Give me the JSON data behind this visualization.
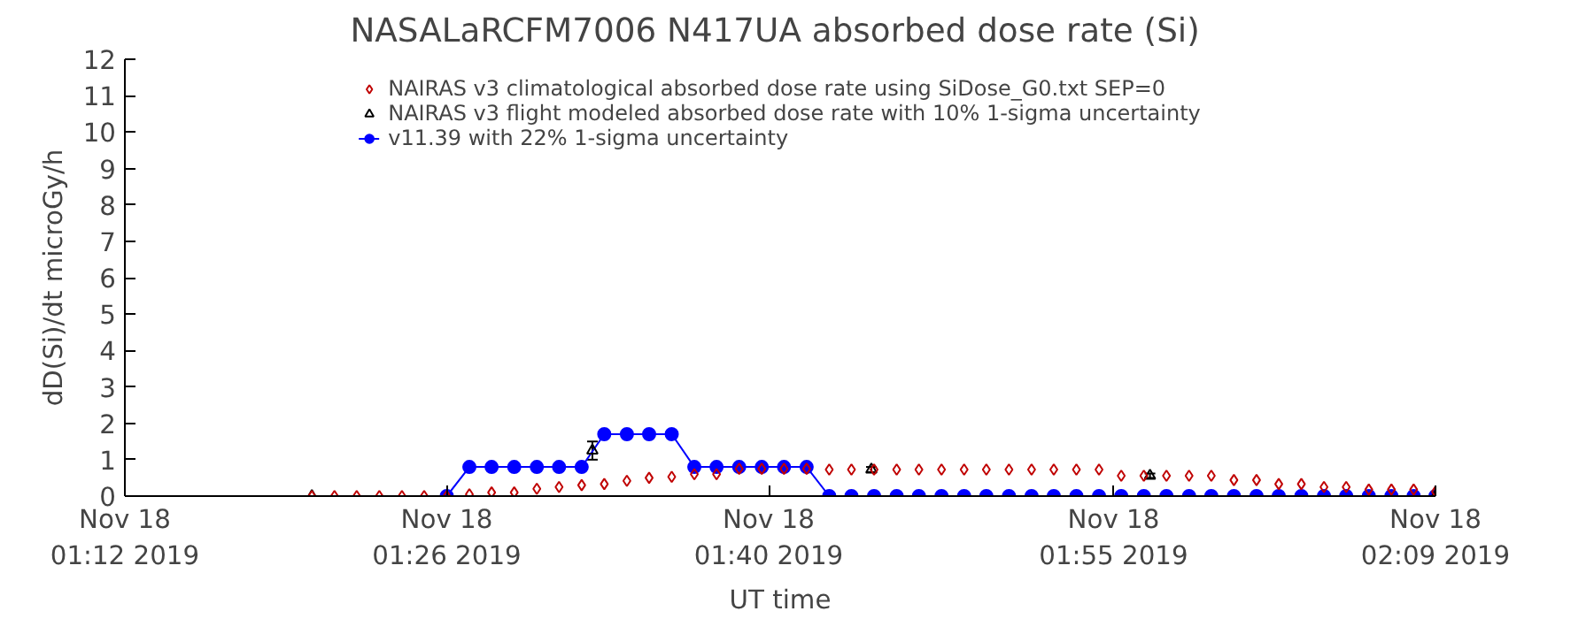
{
  "chart_data": {
    "type": "scatter",
    "title": "NASALaRCFM7006  N417UA absorbed dose rate (Si)",
    "xlabel": "UT time",
    "ylabel": "dD(Si)/dt microGy/h",
    "xlim": [
      "2019-11-18T01:12",
      "2019-11-18T02:09"
    ],
    "ylim": [
      0,
      12
    ],
    "xticks": [
      {
        "value": "2019-11-18T01:12",
        "label": "Nov 18\n01:12 2019"
      },
      {
        "value": "2019-11-18T01:26",
        "label": "Nov 18\n01:26 2019"
      },
      {
        "value": "2019-11-18T01:40",
        "label": "Nov 18\n01:40 2019"
      },
      {
        "value": "2019-11-18T01:55",
        "label": "Nov 18\n01:55 2019"
      },
      {
        "value": "2019-11-18T02:09",
        "label": "Nov 18\n02:09 2019"
      }
    ],
    "yticks": [
      0,
      1,
      2,
      3,
      4,
      5,
      6,
      7,
      8,
      9,
      10,
      11,
      12
    ],
    "grid": false,
    "legend": "top",
    "x": [
      "2019-11-18T01:20:08",
      "2019-11-18T01:21:07",
      "2019-11-18T01:22:05",
      "2019-11-18T01:23:04",
      "2019-11-18T01:24:03",
      "2019-11-18T01:25:01",
      "2019-11-18T01:26:00",
      "2019-11-18T01:26:59",
      "2019-11-18T01:27:57",
      "2019-11-18T01:28:56",
      "2019-11-18T01:29:55",
      "2019-11-18T01:30:53",
      "2019-11-18T01:31:52",
      "2019-11-18T01:32:51",
      "2019-11-18T01:33:50",
      "2019-11-18T01:34:48",
      "2019-11-18T01:35:47",
      "2019-11-18T01:36:46",
      "2019-11-18T01:37:44",
      "2019-11-18T01:38:43",
      "2019-11-18T01:39:42",
      "2019-11-18T01:40:40",
      "2019-11-18T01:41:39",
      "2019-11-18T01:42:38",
      "2019-11-18T01:43:36",
      "2019-11-18T01:44:35",
      "2019-11-18T01:45:34",
      "2019-11-18T01:46:32",
      "2019-11-18T01:47:31",
      "2019-11-18T01:48:30",
      "2019-11-18T01:49:28",
      "2019-11-18T01:50:27",
      "2019-11-18T01:51:26",
      "2019-11-18T01:52:24",
      "2019-11-18T01:53:23",
      "2019-11-18T01:54:22",
      "2019-11-18T01:55:20",
      "2019-11-18T01:56:19",
      "2019-11-18T01:57:18",
      "2019-11-18T01:58:17",
      "2019-11-18T01:59:15",
      "2019-11-18T02:00:14",
      "2019-11-18T02:01:13",
      "2019-11-18T02:02:11",
      "2019-11-18T02:03:10",
      "2019-11-18T02:04:09",
      "2019-11-18T02:05:07",
      "2019-11-18T02:06:06",
      "2019-11-18T02:07:05",
      "2019-11-18T02:08:03",
      "2019-11-18T02:09:00"
    ],
    "series": [
      {
        "name": "NAIRAS v3 climatological absorbed dose rate using SiDose_G0.txt SEP=0",
        "marker": "diamond",
        "color": "#c00000",
        "values": [
          0,
          0,
          0,
          0,
          0,
          0,
          0,
          0.05,
          0.1,
          0.1,
          0.2,
          0.25,
          0.3,
          0.33,
          0.42,
          0.5,
          0.53,
          0.6,
          0.6,
          0.75,
          0.75,
          0.75,
          0.75,
          0.73,
          0.73,
          0.73,
          0.73,
          0.73,
          0.73,
          0.73,
          0.73,
          0.73,
          0.73,
          0.73,
          0.73,
          0.73,
          0.56,
          0.56,
          0.56,
          0.56,
          0.56,
          0.44,
          0.44,
          0.33,
          0.33,
          0.25,
          0.25,
          0.18,
          0.18,
          0.18,
          0.12
        ]
      },
      {
        "name": "NAIRAS v3 flight modeled absorbed dose rate with 10% 1-sigma uncertainty",
        "marker": "triangle",
        "color": "#000000",
        "x": [
          "2019-11-18T01:20:08",
          "2019-11-18T01:32:20",
          "2019-11-18T01:44:28",
          "2019-11-18T01:56:35",
          "2019-11-18T02:09:00"
        ],
        "values": [
          0,
          1.25,
          0.73,
          0.56,
          0
        ],
        "errors": [
          null,
          0.25,
          0.07,
          0.06,
          null
        ]
      },
      {
        "name": "v11.39 with 22% 1-sigma uncertainty",
        "type": "line",
        "marker": "circle",
        "color": "#0000ff",
        "values": [
          null,
          null,
          null,
          null,
          null,
          null,
          0,
          0.8,
          0.8,
          0.8,
          0.8,
          0.8,
          0.8,
          1.7,
          1.7,
          1.7,
          1.7,
          0.8,
          0.8,
          0.8,
          0.8,
          0.8,
          0.8,
          0,
          0,
          0,
          0,
          0,
          0,
          0,
          0,
          0,
          0,
          0,
          0,
          0,
          0,
          0,
          0,
          0,
          0,
          0,
          0,
          0,
          0,
          0,
          0,
          0,
          0,
          0,
          0
        ]
      }
    ]
  }
}
